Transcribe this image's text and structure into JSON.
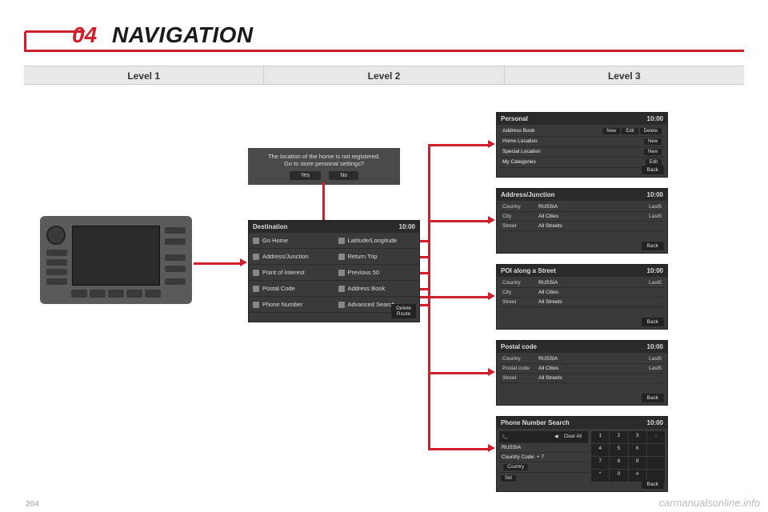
{
  "section": {
    "number": "04",
    "title": "NAVIGATION"
  },
  "levels": [
    "Level 1",
    "Level 2",
    "Level 3"
  ],
  "dialog": {
    "line1": "The location of the home is not registered.",
    "line2": "Go to store personal settings?",
    "yes": "Yes",
    "no": "No"
  },
  "time": "10:00",
  "back": "Back",
  "destination": {
    "title": "Destination",
    "left": [
      "Go Home",
      "Address/Junction",
      "Point of Interest",
      "Postal Code",
      "Phone Number"
    ],
    "right": [
      "Latitude/Longitude",
      "Return Trip",
      "Previous 50",
      "Address Book",
      "Advanced Search"
    ],
    "delete": "Delete\nRoute"
  },
  "personal": {
    "title": "Personal",
    "rows": [
      {
        "label": "Address Book",
        "btns": [
          "New",
          "Edit",
          "Delete"
        ]
      },
      {
        "label": "Home Location",
        "btns": [
          "New"
        ]
      },
      {
        "label": "Special Location",
        "btns": [
          "New"
        ]
      },
      {
        "label": "My Categories",
        "btns": [
          "Edit"
        ]
      }
    ]
  },
  "address_junction": {
    "title": "Address/Junction",
    "rows": [
      {
        "c1": "Country",
        "c2": "RUSSIA",
        "c3": "Last5"
      },
      {
        "c1": "City",
        "c2": "All Cities",
        "c3": "Last5"
      },
      {
        "c1": "Street",
        "c2": "All Streets",
        "c3": ""
      }
    ]
  },
  "poi": {
    "title": "POI along a Street",
    "rows": [
      {
        "c1": "Country",
        "c2": "RUSSIA",
        "c3": "Last5"
      },
      {
        "c1": "City",
        "c2": "All Cities",
        "c3": ""
      },
      {
        "c1": "Street",
        "c2": "All Streets",
        "c3": ""
      }
    ]
  },
  "postal": {
    "title": "Postal code",
    "rows": [
      {
        "c1": "Country",
        "c2": "RUSSIA",
        "c3": "Last5"
      },
      {
        "c1": "Postal code",
        "c2": "All Cities",
        "c3": "Last5"
      },
      {
        "c1": "Street",
        "c2": "All Streets",
        "c3": ""
      }
    ]
  },
  "phone": {
    "title": "Phone Number Search",
    "clear": "Clear All",
    "russia": "RUSSIA",
    "code_label": "Country Code: + 7",
    "country_btn": "Country",
    "set_btn": "Set",
    "keys": [
      "1",
      "2",
      "3",
      "-",
      "4",
      "5",
      "6",
      "",
      "7",
      "8",
      "9",
      "",
      "*",
      "0",
      "#",
      ""
    ]
  },
  "watermark": "carmanualsonline.info",
  "page_num": "204",
  "colors": {
    "accent": "#d01e2a",
    "dark": "#3a3a3a",
    "darker": "#2a2a2a"
  }
}
